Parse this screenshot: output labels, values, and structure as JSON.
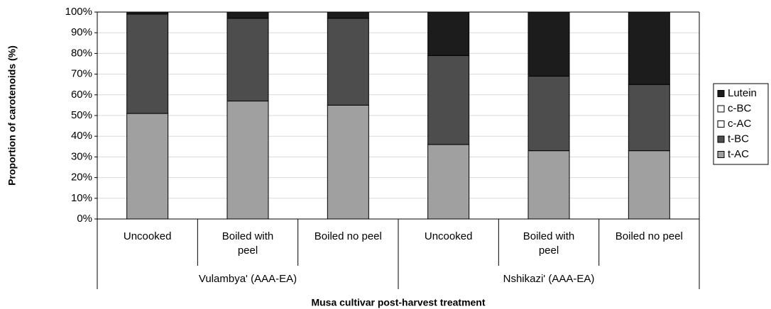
{
  "chart_data": {
    "type": "stacked_bar",
    "y_label": "Proportion of carotenoids (%)",
    "x_label": "Musa cultivar post-harvest treatment",
    "categories": [
      "Uncooked",
      "Boiled with peel",
      "Boiled no peel",
      "Uncooked",
      "Boiled with peel",
      "Boiled no peel"
    ],
    "group_labels": [
      "Vulambya' (AAA-EA)",
      "Nshikazi' (AAA-EA)"
    ],
    "series": [
      {
        "name": "t-AC",
        "color": "#a0a0a0",
        "values": [
          51,
          57,
          55,
          36,
          33,
          33
        ]
      },
      {
        "name": "t-BC",
        "color": "#4d4d4d",
        "values": [
          48,
          40,
          42,
          43,
          36,
          32
        ]
      },
      {
        "name": "c-AC",
        "color": "#ffffff",
        "values": [
          0,
          0,
          0,
          0,
          0,
          0
        ]
      },
      {
        "name": "c-BC",
        "color": "#ffffff",
        "values": [
          0,
          0,
          0,
          0,
          0,
          0
        ]
      },
      {
        "name": "Lutein",
        "color": "#1c1c1c",
        "values": [
          1,
          3,
          3,
          21,
          31,
          35
        ]
      }
    ],
    "ylim": [
      0,
      100
    ],
    "yticks": [
      {
        "value": 0,
        "label": "0%"
      },
      {
        "value": 10,
        "label": "10%"
      },
      {
        "value": 20,
        "label": "20%"
      },
      {
        "value": 30,
        "label": "30%"
      },
      {
        "value": 40,
        "label": "40%"
      },
      {
        "value": 50,
        "label": "50%"
      },
      {
        "value": 60,
        "label": "60%"
      },
      {
        "value": 70,
        "label": "70%"
      },
      {
        "value": 80,
        "label": "80%"
      },
      {
        "value": 90,
        "label": "90%"
      },
      {
        "value": 100,
        "label": "100%"
      }
    ],
    "grid": true
  }
}
